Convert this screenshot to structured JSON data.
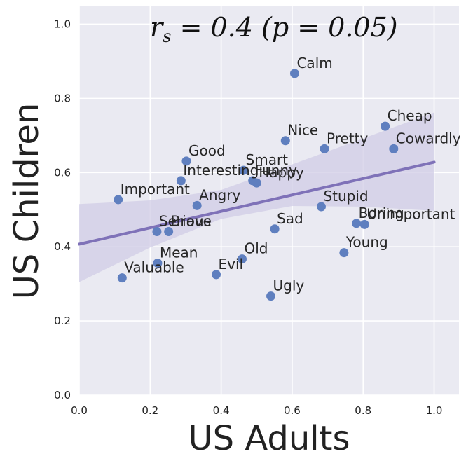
{
  "colors": {
    "background": "#eaeaf2",
    "grid": "#ffffff",
    "point": "#5f7fbf",
    "regression_line": "#7f72b8",
    "confidence_band": "#d0cce6"
  },
  "chart_data": {
    "type": "scatter",
    "title": "",
    "xlabel": "US Adults",
    "ylabel": "US Children",
    "xlim": [
      0.0,
      1.07
    ],
    "ylim": [
      0.0,
      1.05
    ],
    "xticks": [
      0.0,
      0.2,
      0.4,
      0.6,
      0.8,
      1.0
    ],
    "yticks": [
      0.0,
      0.2,
      0.4,
      0.6,
      0.8,
      1.0
    ],
    "xtick_labels": [
      "0.0",
      "0.2",
      "0.4",
      "0.6",
      "0.8",
      "1.0"
    ],
    "ytick_labels": [
      "0.0",
      "0.2",
      "0.4",
      "0.6",
      "0.8",
      "1.0"
    ],
    "grid": true,
    "annotation": "r_s = 0.4 (p = 0.05)",
    "annotation_parts": {
      "r": "r",
      "sub": "s",
      "rest": " = 0.4 (p = 0.05)"
    },
    "points": [
      {
        "label": "Calm",
        "x": 0.607,
        "y": 0.867
      },
      {
        "label": "Cheap",
        "x": 0.862,
        "y": 0.725
      },
      {
        "label": "Nice",
        "x": 0.581,
        "y": 0.686
      },
      {
        "label": "Pretty",
        "x": 0.691,
        "y": 0.664
      },
      {
        "label": "Cowardly",
        "x": 0.886,
        "y": 0.664
      },
      {
        "label": "Good",
        "x": 0.302,
        "y": 0.631
      },
      {
        "label": "Smart",
        "x": 0.463,
        "y": 0.606
      },
      {
        "label": "Interesting",
        "x": 0.287,
        "y": 0.578
      },
      {
        "label": "Funny",
        "x": 0.489,
        "y": 0.578
      },
      {
        "label": "Happy",
        "x": 0.5,
        "y": 0.572
      },
      {
        "label": "Important",
        "x": 0.11,
        "y": 0.527
      },
      {
        "label": "Angry",
        "x": 0.332,
        "y": 0.511
      },
      {
        "label": "Stupid",
        "x": 0.682,
        "y": 0.508
      },
      {
        "label": "Boring",
        "x": 0.781,
        "y": 0.463
      },
      {
        "label": "Unimportant",
        "x": 0.804,
        "y": 0.46
      },
      {
        "label": "Serious",
        "x": 0.219,
        "y": 0.441
      },
      {
        "label": "Brave",
        "x": 0.252,
        "y": 0.441
      },
      {
        "label": "Sad",
        "x": 0.551,
        "y": 0.448
      },
      {
        "label": "Young",
        "x": 0.746,
        "y": 0.384
      },
      {
        "label": "Mean",
        "x": 0.221,
        "y": 0.356
      },
      {
        "label": "Old",
        "x": 0.459,
        "y": 0.367
      },
      {
        "label": "Evil",
        "x": 0.386,
        "y": 0.325
      },
      {
        "label": "Valuable",
        "x": 0.121,
        "y": 0.316
      },
      {
        "label": "Ugly",
        "x": 0.54,
        "y": 0.267
      }
    ],
    "regression": {
      "x": [
        0.0,
        1.0
      ],
      "y": [
        0.407,
        0.628
      ]
    },
    "confidence_band": {
      "x": [
        0.0,
        0.2,
        0.4,
        0.6,
        0.8,
        1.0
      ],
      "lower": [
        0.305,
        0.398,
        0.475,
        0.51,
        0.508,
        0.497
      ],
      "upper": [
        0.515,
        0.525,
        0.553,
        0.622,
        0.692,
        0.762
      ]
    }
  }
}
